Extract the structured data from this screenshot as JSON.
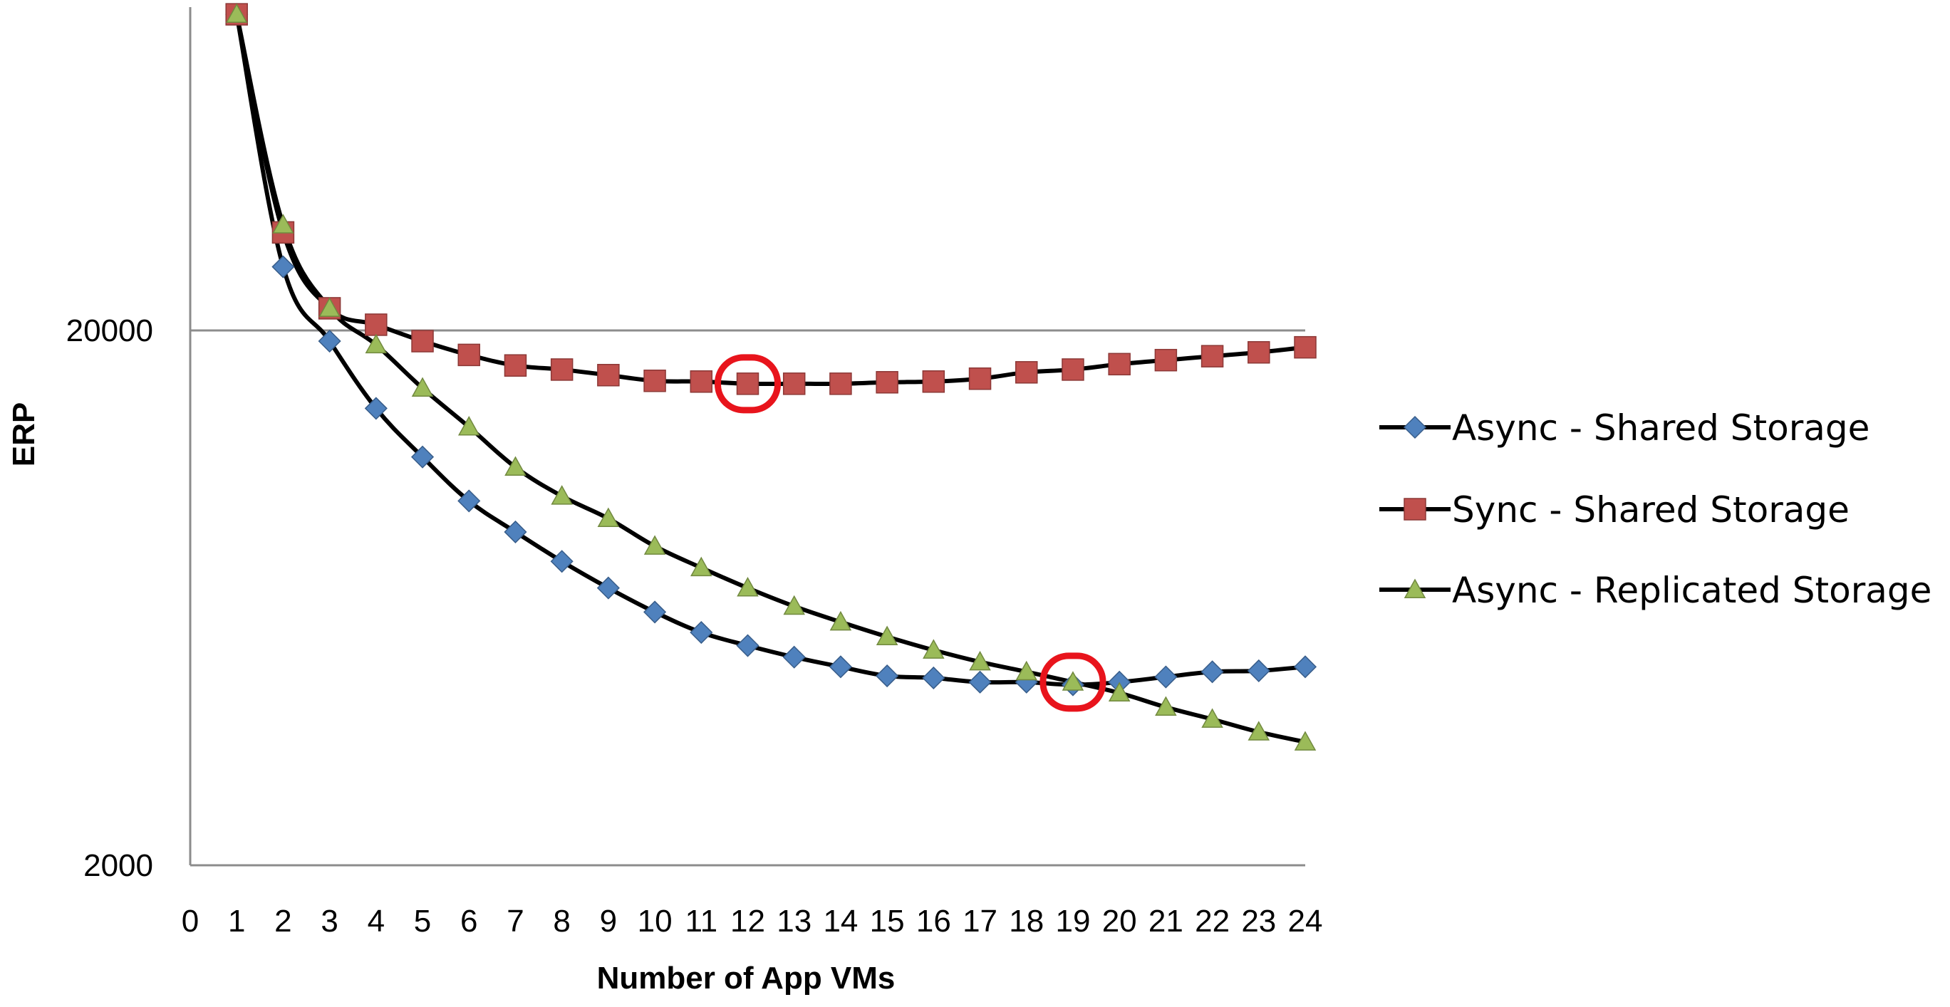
{
  "chart_data": {
    "type": "line",
    "title": "",
    "xlabel": "Number of App VMs",
    "ylabel": "ERP",
    "x": [
      1,
      2,
      3,
      4,
      5,
      6,
      7,
      8,
      9,
      10,
      11,
      12,
      13,
      14,
      15,
      16,
      17,
      18,
      19,
      20,
      21,
      22,
      23,
      24
    ],
    "x_ticks": [
      0,
      1,
      2,
      3,
      4,
      5,
      6,
      7,
      8,
      9,
      10,
      11,
      12,
      13,
      14,
      15,
      16,
      17,
      18,
      19,
      20,
      21,
      22,
      23,
      24
    ],
    "x_tick_labels": [
      "0",
      "1",
      "2",
      "3",
      "4",
      "5",
      "6",
      "7",
      "8",
      "9",
      "10",
      "11",
      "12",
      "13",
      "14",
      "15",
      "16",
      "17",
      "18",
      "19",
      "20",
      "21",
      "22",
      "23",
      "24"
    ],
    "xlim": [
      0,
      24
    ],
    "y_scale": "log",
    "ylim": [
      2000,
      80000
    ],
    "y_ticks": [
      2000,
      20000
    ],
    "y_tick_labels": [
      "2000",
      "20000"
    ],
    "grid": {
      "y_major": true,
      "x": false
    },
    "legend": "right",
    "series": [
      {
        "name": "Async - Shared Storage",
        "marker": "diamond",
        "color": "#4F81BD",
        "values": [
          78000,
          26300,
          19100,
          14300,
          11600,
          9600,
          8400,
          7400,
          6600,
          5950,
          5450,
          5150,
          4900,
          4700,
          4520,
          4480,
          4400,
          4400,
          4350,
          4400,
          4500,
          4600,
          4620,
          4700
        ]
      },
      {
        "name": "Sync - Shared Storage",
        "marker": "square",
        "color": "#C0504D",
        "values": [
          78000,
          30500,
          22000,
          20500,
          19100,
          18000,
          17200,
          16900,
          16500,
          16100,
          16050,
          15900,
          15900,
          15900,
          16000,
          16050,
          16250,
          16700,
          16900,
          17300,
          17600,
          17900,
          18200,
          18600
        ]
      },
      {
        "name": "Async - Replicated Storage",
        "marker": "triangle",
        "color": "#9BBB59",
        "values": [
          78000,
          31500,
          22000,
          18800,
          15600,
          13200,
          11100,
          9800,
          8900,
          7900,
          7200,
          6600,
          6100,
          5700,
          5350,
          5050,
          4800,
          4600,
          4400,
          4200,
          3950,
          3750,
          3550,
          3400
        ]
      }
    ],
    "annotations": [
      {
        "type": "circle",
        "color": "#E8141C",
        "x": 12,
        "y": 15900,
        "label": ""
      },
      {
        "type": "circle",
        "color": "#E8141C",
        "x": 19,
        "y": 4400,
        "label": ""
      }
    ]
  }
}
